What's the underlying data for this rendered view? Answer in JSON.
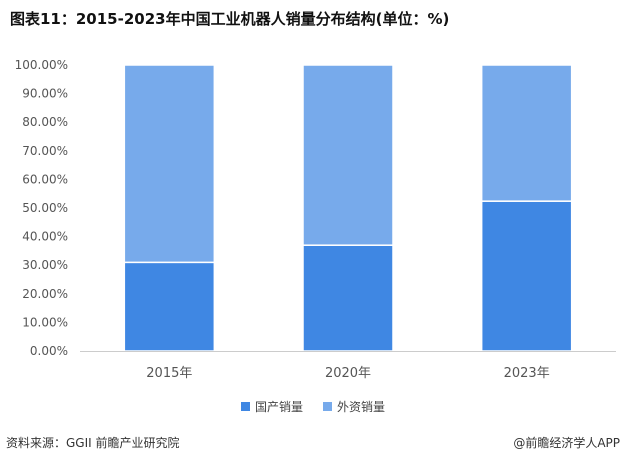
{
  "title": "图表11：2015-2023年中国工业机器人销量分布结构(单位：%)",
  "source": "资料来源：GGII 前瞻产业研究院",
  "brand": "@前瞻经济学人APP",
  "colors": {
    "domestic": "#3f87e3",
    "foreign": "#77aaeb",
    "axis": "#cccccc"
  },
  "chart_data": {
    "type": "bar",
    "stacked": true,
    "categories": [
      "2015年",
      "2020年",
      "2023年"
    ],
    "series": [
      {
        "name": "国产销量",
        "values": [
          31.0,
          37.0,
          52.4
        ]
      },
      {
        "name": "外资销量",
        "values": [
          69.0,
          63.0,
          47.6
        ]
      }
    ],
    "ylim": [
      0,
      100
    ],
    "yticks": [
      "0.00%",
      "10.00%",
      "20.00%",
      "30.00%",
      "40.00%",
      "50.00%",
      "60.00%",
      "70.00%",
      "80.00%",
      "90.00%",
      "100.00%"
    ],
    "legend_position": "bottom",
    "grid": false
  }
}
